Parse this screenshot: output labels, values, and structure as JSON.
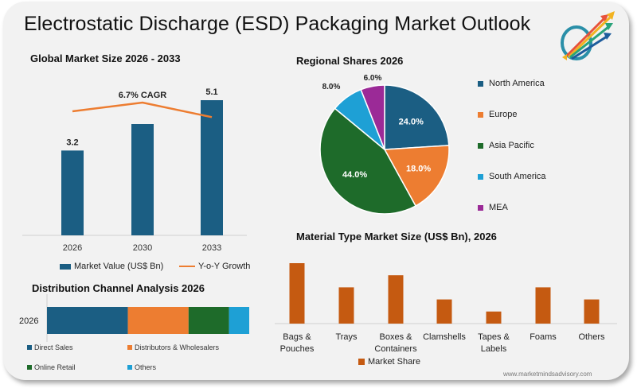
{
  "page": {
    "title": "Electrostatic Discharge (ESD) Packaging Market Outlook",
    "logo_icon": "rising-arrows-logo-icon",
    "website": "www.marketmindsadvisory.com"
  },
  "colors": {
    "navy": "#1b5e83",
    "orange": "#ed7d31",
    "green": "#1e6b2a",
    "light_blue": "#1ea0d5",
    "purple": "#9b2a97",
    "rust": "#c55a11",
    "background": "#f2f2f2"
  },
  "chart_data": [
    {
      "id": "global_market",
      "type": "bar",
      "title": "Global Market Size 2026 - 2033",
      "categories": [
        "2026",
        "2030",
        "2033"
      ],
      "series": [
        {
          "name": "Market Value (US$ Bn)",
          "values": [
            3.2,
            4.2,
            5.1
          ],
          "data_labels": [
            "3.2",
            "",
            "5.1"
          ],
          "color": "#1b5e83"
        },
        {
          "name": "Y-o-Y Growth",
          "type": "line",
          "values": [
            6.4,
            6.7,
            6.2
          ],
          "color": "#ed7d31"
        }
      ],
      "annotation": "6.7% CAGR",
      "ylim": [
        0,
        6
      ],
      "legend": "bottom",
      "grid": false
    },
    {
      "id": "regional_shares",
      "type": "pie",
      "title": "Regional Shares 2026",
      "slices": [
        {
          "label": "North America",
          "value": 24.0,
          "text": "24.0%",
          "color": "#1b5e83"
        },
        {
          "label": "Europe",
          "value": 18.0,
          "text": "18.0%",
          "color": "#ed7d31"
        },
        {
          "label": "Asia Pacific",
          "value": 44.0,
          "text": "44.0%",
          "color": "#1e6b2a"
        },
        {
          "label": "South America",
          "value": 8.0,
          "text": "8.0%",
          "color": "#1ea0d5"
        },
        {
          "label": "MEA",
          "value": 6.0,
          "text": "6.0%",
          "color": "#9b2a97"
        }
      ],
      "legend": "right"
    },
    {
      "id": "distribution_channel",
      "type": "bar",
      "orientation": "horizontal-stacked",
      "title": "Distribution Channel Analysis 2026",
      "categories": [
        "2026"
      ],
      "series": [
        {
          "name": "Direct Sales",
          "values": [
            40
          ],
          "color": "#1b5e83"
        },
        {
          "name": "Distributors & Wholesalers",
          "values": [
            30
          ],
          "color": "#ed7d31"
        },
        {
          "name": "Online Retail",
          "values": [
            20
          ],
          "color": "#1e6b2a"
        },
        {
          "name": "Others",
          "values": [
            10
          ],
          "color": "#1ea0d5"
        }
      ],
      "legend": "bottom"
    },
    {
      "id": "material_type",
      "type": "bar",
      "title": "Material Type Market Size (US$ Bn), 2026",
      "categories": [
        [
          "Bags &",
          "Pouches"
        ],
        [
          "Trays"
        ],
        [
          "Boxes &",
          "Containers"
        ],
        [
          "Clamshells"
        ],
        [
          "Tapes &",
          "Labels"
        ],
        [
          "Foams"
        ],
        [
          "Others"
        ]
      ],
      "series": [
        {
          "name": "Market Share",
          "values": [
            5,
            3,
            4,
            2,
            1,
            3,
            2
          ],
          "color": "#c55a11"
        }
      ],
      "ylim": [
        0,
        5
      ],
      "legend": "bottom",
      "grid": false
    }
  ]
}
